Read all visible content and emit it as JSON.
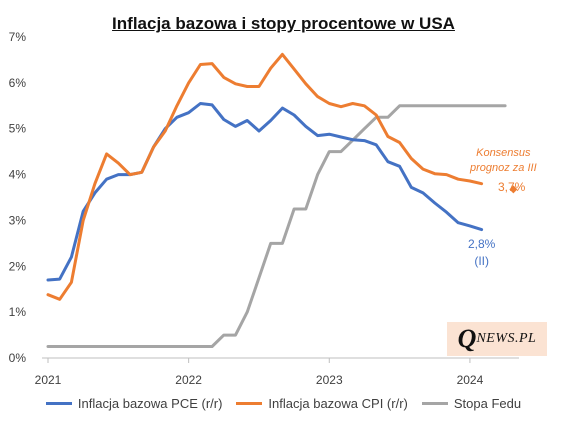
{
  "chart_data": {
    "type": "line",
    "title": "Inflacja bazowa i stopy procentowe w USA",
    "y_ticks": [
      "0%",
      "1%",
      "2%",
      "3%",
      "4%",
      "5%",
      "6%",
      "7%"
    ],
    "x_ticks": [
      "2021",
      "2022",
      "2023",
      "2024"
    ],
    "ylim": [
      0,
      7
    ],
    "x_range": [
      "2021-01",
      "2024-03"
    ],
    "grid": false,
    "legend_position": "bottom",
    "series": [
      {
        "name": "Inflacja bazowa PCE (r/r)",
        "color": "#4472c4",
        "start": "2021-01",
        "values": [
          1.7,
          1.72,
          2.2,
          3.2,
          3.6,
          3.9,
          4.0,
          4.0,
          4.05,
          4.6,
          5.0,
          5.25,
          5.35,
          5.55,
          5.52,
          5.2,
          5.05,
          5.18,
          4.95,
          5.18,
          5.45,
          5.3,
          5.05,
          4.85,
          4.88,
          4.82,
          4.76,
          4.74,
          4.65,
          4.28,
          4.18,
          3.72,
          3.6,
          3.38,
          3.18,
          2.95,
          2.88,
          2.8
        ]
      },
      {
        "name": "Inflacja bazowa CPI (r/r)",
        "color": "#ed7d31",
        "start": "2021-01",
        "values": [
          1.38,
          1.28,
          1.65,
          3.0,
          3.8,
          4.45,
          4.25,
          4.0,
          4.05,
          4.6,
          4.95,
          5.5,
          6.0,
          6.4,
          6.42,
          6.12,
          5.98,
          5.92,
          5.92,
          6.32,
          6.62,
          6.3,
          5.98,
          5.7,
          5.55,
          5.48,
          5.55,
          5.5,
          5.3,
          4.83,
          4.7,
          4.35,
          4.12,
          4.02,
          4.0,
          3.9,
          3.86,
          3.8
        ]
      },
      {
        "name": "Stopa Fedu",
        "color": "#a5a5a5",
        "start": "2021-01",
        "values": [
          0.25,
          0.25,
          0.25,
          0.25,
          0.25,
          0.25,
          0.25,
          0.25,
          0.25,
          0.25,
          0.25,
          0.25,
          0.25,
          0.25,
          0.25,
          0.5,
          0.5,
          1.0,
          1.75,
          2.5,
          2.5,
          3.25,
          3.25,
          4.0,
          4.5,
          4.5,
          4.75,
          5.0,
          5.25,
          5.25,
          5.5,
          5.5,
          5.5,
          5.5,
          5.5,
          5.5,
          5.5,
          5.5,
          5.5,
          5.5
        ]
      }
    ],
    "annotations": {
      "consensus_label_1": "Konsensus",
      "consensus_label_2": "prognoz za III",
      "consensus_value": 3.7,
      "consensus_text": "3,7%",
      "consensus_date": "2024-03",
      "pce_last_text": "2,8%",
      "pce_last_period": "(II)"
    }
  },
  "logo": {
    "q": "Q",
    "rest": "NEWS.PL"
  }
}
